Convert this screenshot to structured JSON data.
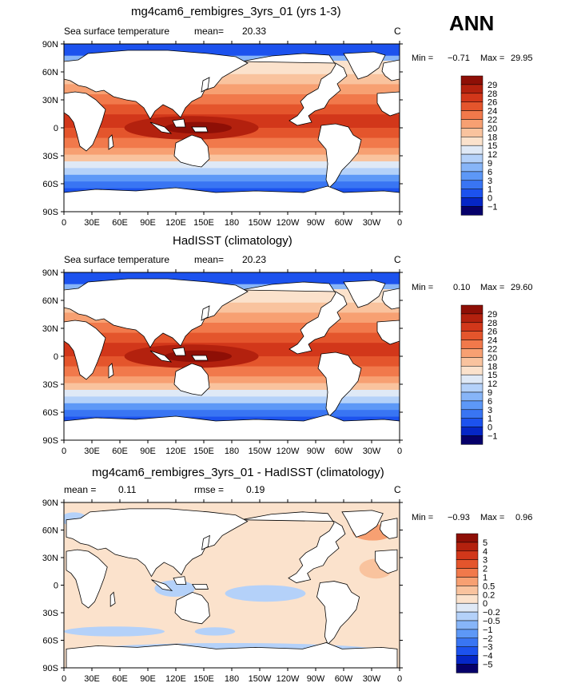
{
  "season": "ANN",
  "palettes": {
    "abs": [
      "#06006a",
      "#0526c6",
      "#1c52ee",
      "#3975f3",
      "#5d98f7",
      "#87b5f8",
      "#b4d1f9",
      "#dfe9f6",
      "#fbe2cc",
      "#f9c39e",
      "#f7a072",
      "#f1794b",
      "#e4552c",
      "#d2371a",
      "#b3210e",
      "#8e0f06"
    ],
    "diff": [
      "#06006a",
      "#0526c6",
      "#1c52ee",
      "#3975f3",
      "#5d98f7",
      "#87b5f8",
      "#b4d1f9",
      "#dfe9f6",
      "#fbe2cc",
      "#f9c39e",
      "#f7a072",
      "#f1794b",
      "#e4552c",
      "#d2371a",
      "#b3210e",
      "#8e0f06"
    ]
  },
  "panels": [
    {
      "title": "mg4cam6_rembigres_3yrs_01 (yrs 1-3)",
      "stats_left": "Sea surface temperature",
      "mean_label": "mean=",
      "mean_value": "20.33",
      "units": "C",
      "min_label": "Min =",
      "min_value": "−0.71",
      "max_label": "Max =",
      "max_value": "29.95",
      "colorbar": [
        "29",
        "28",
        "26",
        "24",
        "22",
        "20",
        "18",
        "15",
        "12",
        "9",
        "6",
        "3",
        "1",
        "0",
        "−1"
      ]
    },
    {
      "title": "HadISST (climatology)",
      "stats_left": "Sea surface temperature",
      "mean_label": "mean=",
      "mean_value": "20.23",
      "units": "C",
      "min_label": "Min =",
      "min_value": "0.10",
      "max_label": "Max =",
      "max_value": "29.60",
      "colorbar": [
        "29",
        "28",
        "26",
        "24",
        "22",
        "20",
        "18",
        "15",
        "12",
        "9",
        "6",
        "3",
        "1",
        "0",
        "−1"
      ]
    },
    {
      "title": "mg4cam6_rembigres_3yrs_01 - HadISST (climatology)",
      "stats_left": "mean =",
      "mean_label": "",
      "mean_value": "0.11",
      "rmse_label": "rmse =",
      "rmse_value": "0.19",
      "units": "C",
      "min_label": "Min =",
      "min_value": "−0.93",
      "max_label": "Max =",
      "max_value": "0.96",
      "colorbar": [
        "5",
        "4",
        "3",
        "2",
        "1",
        "0.5",
        "0.2",
        "0",
        "−0.2",
        "−0.5",
        "−1",
        "−2",
        "−3",
        "−4",
        "−5"
      ]
    }
  ],
  "chart_data": {
    "type": "heatmap",
    "variable": "Sea surface temperature",
    "units": "C",
    "x_ticks": [
      "0",
      "30E",
      "60E",
      "90E",
      "120E",
      "150E",
      "180",
      "150W",
      "120W",
      "90W",
      "60W",
      "30W",
      "0"
    ],
    "y_ticks": [
      "90N",
      "60N",
      "30N",
      "0",
      "30S",
      "60S",
      "90S"
    ],
    "xlim": [
      0,
      360
    ],
    "ylim": [
      -90,
      90
    ],
    "x_tick_values": [
      0,
      30,
      60,
      90,
      120,
      150,
      180,
      210,
      240,
      270,
      300,
      330,
      360
    ],
    "y_tick_values": [
      90,
      60,
      30,
      0,
      -30,
      -60,
      -90
    ]
  }
}
